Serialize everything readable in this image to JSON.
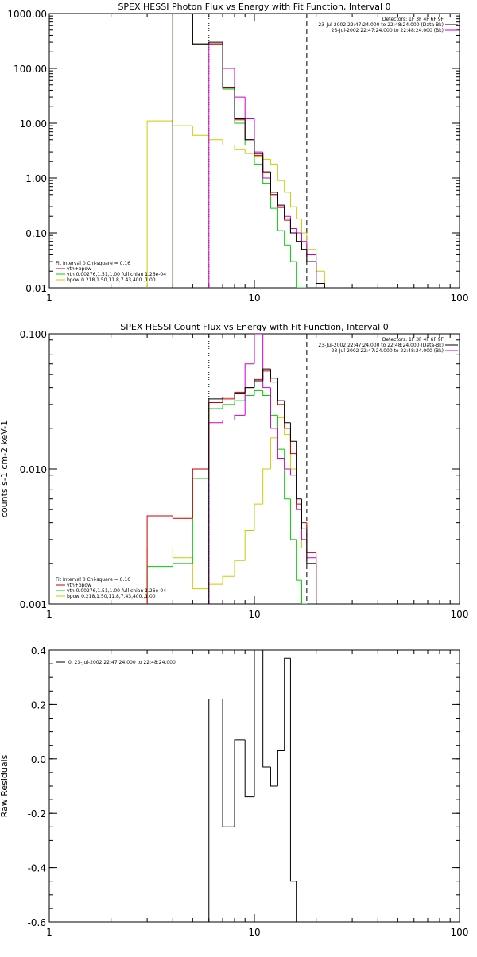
{
  "colors": {
    "data": "#000000",
    "total": "#cc0000",
    "vth": "#00cc00",
    "bpow": "#cccc00",
    "background": "#cc00cc"
  },
  "chart_data": [
    {
      "type": "line",
      "title": "SPEX HESSI Photon Flux vs Energy with Fit Function, Interval 0",
      "xlog": true,
      "ylog": true,
      "xlim": [
        1,
        100
      ],
      "ylim": [
        0.01,
        1000
      ],
      "x_ticks": [
        "1",
        "10",
        "100"
      ],
      "y_ticks": [
        "0.01",
        "0.10",
        "1.00",
        "10.00",
        "100.00",
        "1000.00"
      ],
      "ylabel": "",
      "markers": {
        "dotted_x": 6,
        "dashed_x": 18
      },
      "top_legend": [
        "Detectors: 1F 3F 4F 6F 9F",
        "23-Jul-2002 22:47:24.000 to 22:48:24.000 (Data-Bk)",
        "23-Jul-2002 22:47:24.000 to 22:48:24.000 (Bk)"
      ],
      "fit_legend": [
        "Fit Interval 0   Chi-square = 0.16",
        "vth+bpow",
        "vth 0.00276,1.51,1.00  full chian 1.26e-04",
        "bpow 0.218,1.50,11.8,7.43,400.,1.00"
      ],
      "edges": [
        3,
        4,
        5,
        6,
        7,
        8,
        9,
        10,
        11,
        12,
        13,
        14,
        15,
        16,
        17,
        18,
        20,
        22,
        25
      ],
      "series": [
        {
          "name": "data",
          "values": [
            null,
            1000,
            280,
            300,
            45,
            12,
            5,
            2.8,
            1.3,
            0.55,
            0.32,
            0.18,
            0.1,
            0.07,
            0.05,
            0.03,
            0.012,
            0.01
          ]
        },
        {
          "name": "vth+bpow",
          "values": [
            null,
            1000,
            270,
            280,
            44,
            11.5,
            5,
            2.6,
            1.25,
            0.5,
            0.29,
            0.17,
            0.1,
            0.07,
            0.05,
            0.03,
            0.012,
            0.01
          ]
        },
        {
          "name": "vth",
          "values": [
            null,
            1000,
            270,
            270,
            42,
            10,
            4,
            1.8,
            0.8,
            0.28,
            0.11,
            0.06,
            0.03,
            0.01,
            0.005,
            null,
            null,
            null
          ]
        },
        {
          "name": "bpow",
          "values": [
            11,
            9,
            6,
            5,
            4,
            3.3,
            2.8,
            2.5,
            2.2,
            1.8,
            0.9,
            0.55,
            0.3,
            0.18,
            0.1,
            0.05,
            0.02,
            0.01
          ]
        },
        {
          "name": "background",
          "values": [
            null,
            null,
            null,
            280,
            100,
            30,
            12,
            3,
            1,
            0.5,
            0.3,
            0.2,
            0.12,
            0.1,
            0.07,
            0.04,
            0.012,
            0.01
          ]
        }
      ]
    },
    {
      "type": "line",
      "title": "SPEX HESSI Count Flux vs Energy with Fit Function, Interval 0",
      "xlog": true,
      "ylog": true,
      "xlim": [
        1,
        100
      ],
      "ylim": [
        0.001,
        0.1
      ],
      "x_ticks": [
        "1",
        "10",
        "100"
      ],
      "y_ticks": [
        "0.001",
        "0.010",
        "0.100"
      ],
      "ylabel": "counts s-1 cm-2 keV-1",
      "markers": {
        "dotted_x": 6,
        "dashed_x": 18
      },
      "top_legend": [
        "Detectors: 1F 3F 4F 6F 9F",
        "23-Jul-2002 22:47:24.000 to 22:48:24.000 (Data-Bk)",
        "23-Jul-2002 22:47:24.000 to 22:48:24.000 (Bk)"
      ],
      "fit_legend": [
        "Fit Interval 0   Chi-square = 0.16",
        "vth+bpow",
        "vth 0.00276,1.51,1.00  full chian 1.26e-04",
        "bpow 0.218,1.50,11.8,7.43,400.,1.00"
      ],
      "edges": [
        3,
        4,
        5,
        6,
        7,
        8,
        9,
        10,
        11,
        12,
        13,
        14,
        15,
        16,
        17,
        18,
        20,
        22,
        25
      ],
      "series": [
        {
          "name": "data",
          "values": [
            null,
            null,
            null,
            0.033,
            0.034,
            0.036,
            0.04,
            0.045,
            0.055,
            0.047,
            0.032,
            0.022,
            0.016,
            0.006,
            0.0036,
            0.002,
            0.001,
            0.001
          ]
        },
        {
          "name": "vth+bpow",
          "values": [
            0.0045,
            0.0043,
            0.01,
            0.031,
            0.033,
            0.037,
            0.04,
            0.046,
            0.053,
            0.044,
            0.03,
            0.02,
            0.013,
            0.0055,
            0.004,
            0.0024,
            0.001,
            0.001
          ]
        },
        {
          "name": "vth",
          "values": [
            0.0019,
            0.002,
            0.0085,
            0.028,
            0.03,
            0.032,
            0.035,
            0.038,
            0.035,
            0.025,
            0.014,
            0.006,
            0.003,
            0.0015,
            0.001,
            null,
            null,
            null
          ]
        },
        {
          "name": "bpow",
          "values": [
            0.0026,
            0.0022,
            0.0013,
            0.0014,
            0.0016,
            0.0021,
            0.0035,
            0.0055,
            0.01,
            0.017,
            0.024,
            0.018,
            0.01,
            0.005,
            0.0026,
            0.002,
            0.001,
            0.001
          ]
        },
        {
          "name": "background",
          "values": [
            null,
            null,
            null,
            0.022,
            0.023,
            0.025,
            0.06,
            0.1,
            0.04,
            0.02,
            0.012,
            0.01,
            0.009,
            0.005,
            0.003,
            0.0022,
            0.001,
            0.001
          ]
        }
      ]
    },
    {
      "type": "line",
      "title": "",
      "xlog": true,
      "ylog": false,
      "xlim": [
        1,
        100
      ],
      "ylim": [
        -0.6,
        0.4
      ],
      "x_ticks": [
        "1",
        "10",
        "100"
      ],
      "y_ticks": [
        "-0.6",
        "-0.4",
        "-0.2",
        "0.0",
        "0.2",
        "0.4"
      ],
      "ylabel": "Raw Residuals",
      "legend": "0. 23-Jul-2002 22:47:24.000 to 22:48:24.000",
      "edges": [
        6,
        7,
        8,
        9,
        10,
        11,
        12,
        13,
        14,
        15,
        16,
        17,
        18
      ],
      "values": [
        0.22,
        -0.25,
        0.07,
        -0.14,
        0.4,
        -0.03,
        -0.1,
        0.03,
        0.37,
        -0.45,
        -0.6,
        -0.6
      ]
    }
  ]
}
